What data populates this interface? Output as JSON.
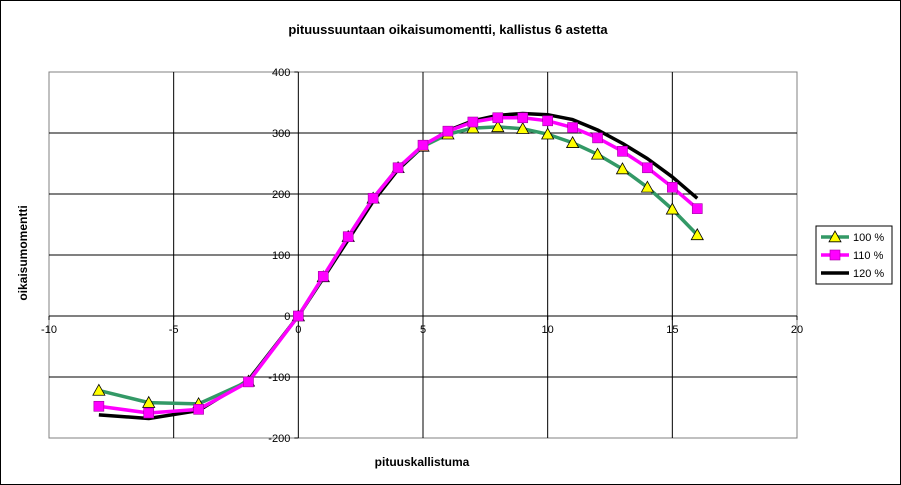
{
  "chart_data": {
    "type": "line",
    "title": "pituussuuntaan oikaisumomentti, kallistus 6 astetta",
    "xlabel": "pituuskallistuma",
    "ylabel": "oikaisumomentti",
    "xlim": [
      -10,
      20
    ],
    "ylim": [
      -200,
      400
    ],
    "xticks": [
      -10,
      -5,
      0,
      5,
      10,
      15,
      20
    ],
    "yticks": [
      -200,
      -100,
      0,
      100,
      200,
      300,
      400
    ],
    "grid": true,
    "legend_position": "right",
    "series": [
      {
        "name": "100 %",
        "color": "#339966",
        "marker": "triangle",
        "marker_color": "#ffff00",
        "x": [
          -8,
          -6,
          -4,
          -2,
          0,
          1,
          2,
          3,
          4,
          5,
          6,
          7,
          8,
          9,
          10,
          11,
          12,
          13,
          14,
          15,
          16
        ],
        "y": [
          -122,
          -142,
          -144,
          -107,
          0,
          64,
          130,
          193,
          243,
          278,
          298,
          308,
          310,
          307,
          298,
          284,
          265,
          241,
          211,
          175,
          133
        ]
      },
      {
        "name": "110 %",
        "color": "#ff00ff",
        "marker": "square",
        "marker_color": "#ff00ff",
        "x": [
          -8,
          -6,
          -4,
          -2,
          0,
          1,
          2,
          3,
          4,
          5,
          6,
          7,
          8,
          9,
          10,
          11,
          12,
          13,
          14,
          15,
          16
        ],
        "y": [
          -148,
          -159,
          -153,
          -108,
          0,
          65,
          130,
          193,
          243,
          280,
          303,
          318,
          325,
          325,
          320,
          309,
          292,
          270,
          243,
          211,
          176
        ]
      },
      {
        "name": "120 %",
        "color": "#000000",
        "marker": "none",
        "marker_color": "",
        "x": [
          -8,
          -6,
          -4,
          -2,
          0,
          1,
          2,
          3,
          4,
          5,
          6,
          7,
          8,
          9,
          10,
          11,
          12,
          13,
          14,
          15,
          16
        ],
        "y": [
          -162,
          -168,
          -155,
          -105,
          0,
          62,
          125,
          188,
          240,
          278,
          304,
          320,
          329,
          332,
          330,
          322,
          305,
          283,
          258,
          228,
          193
        ]
      }
    ]
  }
}
